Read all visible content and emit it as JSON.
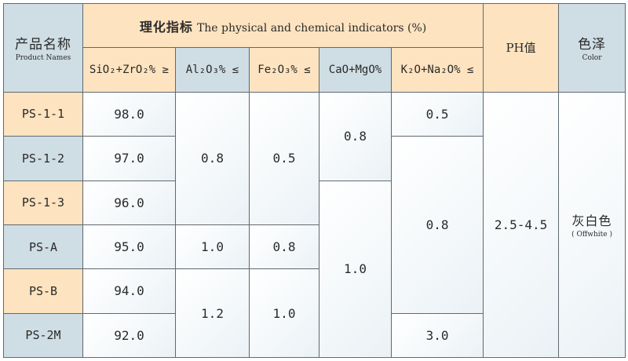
{
  "header": {
    "product_cn": "产品名称",
    "product_en": "Product Names",
    "indicators_cn": "理化指标",
    "indicators_en": "The physical and chemical indicators (%)",
    "ph": "PH值",
    "color_cn": "色泽",
    "color_en": "Color",
    "cols": [
      "SiO₂+ZrO₂% ≥",
      "Al₂O₃% ≤",
      "Fe₂O₃% ≤",
      "CaO+MgO%",
      "K₂O+Na₂O% ≤"
    ]
  },
  "rows": [
    {
      "name": "PS-1-1",
      "sio2": "98.0"
    },
    {
      "name": "PS-1-2",
      "sio2": "97.0"
    },
    {
      "name": "PS-1-3",
      "sio2": "96.0"
    },
    {
      "name": "PS-A",
      "sio2": "95.0"
    },
    {
      "name": "PS-B",
      "sio2": "94.0"
    },
    {
      "name": "PS-2M",
      "sio2": "92.0"
    }
  ],
  "merged": {
    "al_1": "0.8",
    "al_2": "1.0",
    "al_3": "1.2",
    "fe_1": "0.5",
    "fe_2": "0.8",
    "fe_3": "1.0",
    "ca_1": "0.8",
    "ca_2": "1.0",
    "k_1": "0.5",
    "k_2": "0.8",
    "k_3": "3.0",
    "ph": "2.5-4.5",
    "color_cn": "灰白色",
    "color_en": "( Offwhite )"
  }
}
